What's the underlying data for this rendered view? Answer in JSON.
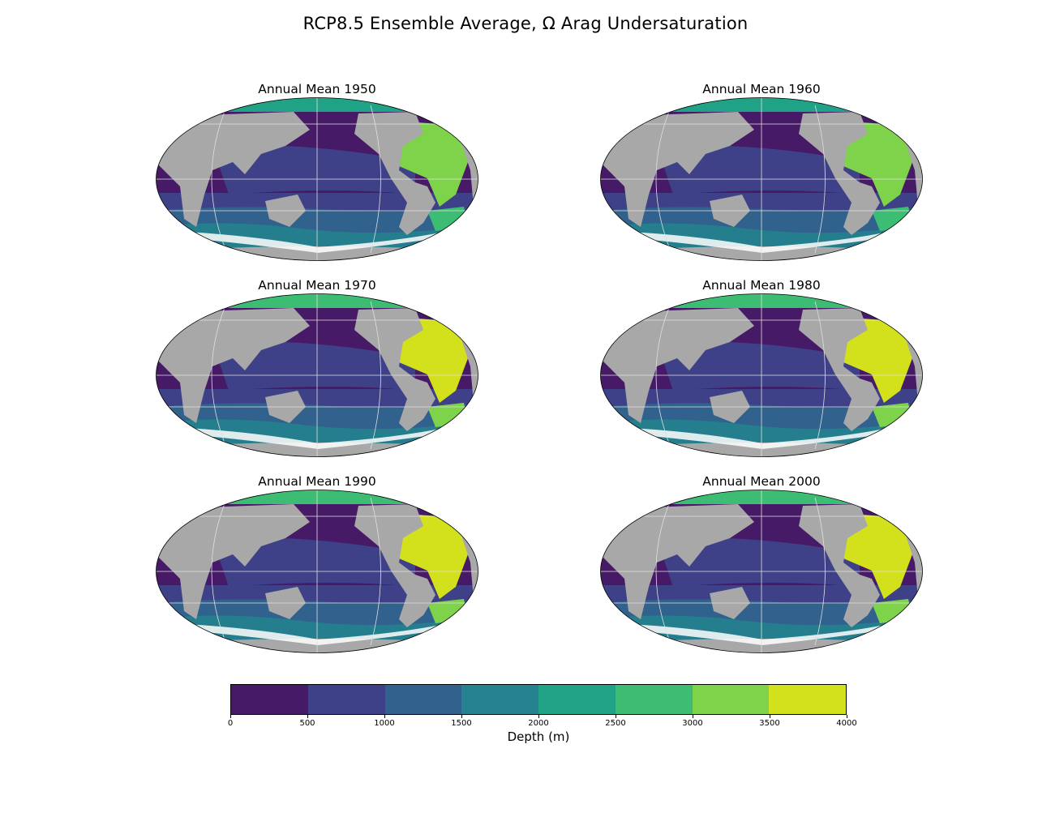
{
  "figure": {
    "title": "RCP8.5 Ensemble Average, Ω Arag Undersaturation"
  },
  "panels": [
    {
      "title": "Annual Mean 1950",
      "atlantic_level": 6,
      "south_atlantic_level": 5,
      "arctic_level": 4
    },
    {
      "title": "Annual Mean 1960",
      "atlantic_level": 6,
      "south_atlantic_level": 5,
      "arctic_level": 4
    },
    {
      "title": "Annual Mean 1970",
      "atlantic_level": 7,
      "south_atlantic_level": 6,
      "arctic_level": 5
    },
    {
      "title": "Annual Mean 1980",
      "atlantic_level": 7,
      "south_atlantic_level": 6,
      "arctic_level": 5
    },
    {
      "title": "Annual Mean 1990",
      "atlantic_level": 7,
      "south_atlantic_level": 6,
      "arctic_level": 5
    },
    {
      "title": "Annual Mean 2000",
      "atlantic_level": 7,
      "south_atlantic_level": 6,
      "arctic_level": 5
    }
  ],
  "colorbar": {
    "label": "Depth (m)",
    "ticks": [
      "0",
      "500",
      "1000",
      "1500",
      "2000",
      "2500",
      "3000",
      "3500",
      "4000"
    ],
    "colors": [
      "#471a67",
      "#3f4188",
      "#31618d",
      "#25828e",
      "#20a287",
      "#3dbc73",
      "#7ed34b",
      "#d2e11b"
    ]
  },
  "colors": {
    "land": "#a8a8a8",
    "missing": "#ffffff",
    "grid": "#e0e0e0"
  }
}
